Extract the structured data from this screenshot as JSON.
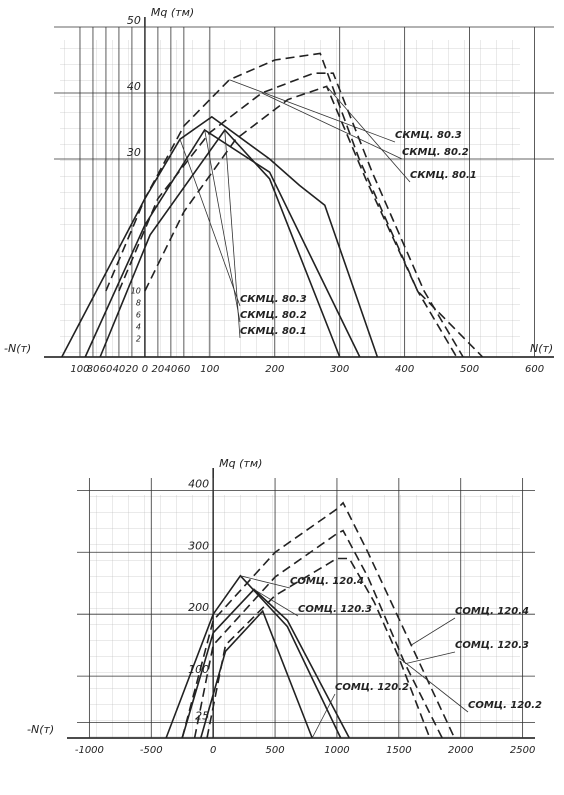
{
  "chart_data": [
    {
      "type": "line",
      "y_label": "Mq (тм)",
      "x_label_left": "-N(т)",
      "x_label": "N(т)",
      "xlim": [
        -140,
        630
      ],
      "ylim": [
        0,
        50
      ],
      "xticks": [
        {
          "value": -100,
          "label": "100"
        },
        {
          "value": -80,
          "label": "80"
        },
        {
          "value": -60,
          "label": "60"
        },
        {
          "value": -40,
          "label": "40"
        },
        {
          "value": -20,
          "label": "20"
        },
        0,
        20,
        40,
        60,
        100,
        200,
        300,
        400,
        500,
        600
      ],
      "yticks": [
        30,
        40,
        50
      ],
      "inner_scale_labels": [
        "10",
        "8",
        "6",
        "4",
        "2"
      ],
      "grid": true,
      "series": [
        {
          "name": "СКМЦ. 80.3",
          "color": "#222",
          "dashed": true,
          "x": [
            -60,
            0,
            60,
            130,
            200,
            270,
            330,
            420,
            520
          ],
          "values": [
            10,
            24,
            35,
            42,
            45,
            46,
            30,
            10,
            0
          ]
        },
        {
          "name": "СКМЦ. 80.2",
          "color": "#222",
          "dashed": true,
          "x": [
            -40,
            20,
            100,
            180,
            260,
            290,
            350,
            430,
            490
          ],
          "values": [
            10,
            24,
            34,
            40,
            43,
            43,
            28,
            10,
            0
          ]
        },
        {
          "name": "СКМЦ. 80.1",
          "color": "#222",
          "dashed": true,
          "x": [
            0,
            60,
            140,
            220,
            280,
            340,
            420,
            480
          ],
          "values": [
            10,
            22,
            33,
            39,
            41,
            27,
            10,
            0
          ]
        },
        {
          "name": "СКМЦ. 80.3",
          "color": "#222",
          "dashed": false,
          "x": [
            -128,
            0,
            54,
            103,
            192,
            238,
            277,
            358
          ],
          "values": [
            0,
            24,
            33,
            36.4,
            30,
            26,
            23,
            0
          ]
        },
        {
          "name": "СКМЦ. 80.2",
          "color": "#222",
          "dashed": false,
          "x": [
            -92,
            0,
            92,
            192,
            331
          ],
          "values": [
            0,
            20,
            34.4,
            28,
            0
          ]
        },
        {
          "name": "СКМЦ. 80.1",
          "color": "#222",
          "dashed": false,
          "x": [
            -69,
            8,
            123,
            192,
            300
          ],
          "values": [
            0,
            18.5,
            34.4,
            27,
            0
          ]
        }
      ]
    },
    {
      "type": "line",
      "y_label": "Mq (тм)",
      "x_label_left": "-N(т)",
      "xlim": [
        -1100,
        2600
      ],
      "ylim": [
        0,
        420
      ],
      "xticks": [
        -1000,
        -500,
        0,
        500,
        1000,
        1500,
        2000,
        2500
      ],
      "yticks": [
        25,
        100,
        200,
        300,
        400
      ],
      "grid": true,
      "series": [
        {
          "name": "СОМЦ. 120.4",
          "color": "#222",
          "dashed": true,
          "x": [
            -250,
            0,
            500,
            1000,
            1050,
            1250,
            1600,
            1950
          ],
          "values": [
            0,
            190,
            300,
            370,
            380,
            300,
            150,
            0
          ]
        },
        {
          "name": "СОМЦ. 120.3",
          "color": "#222",
          "dashed": true,
          "x": [
            -150,
            0,
            500,
            1000,
            1050,
            1250,
            1550,
            1850
          ],
          "values": [
            0,
            150,
            260,
            330,
            335,
            260,
            120,
            0
          ]
        },
        {
          "name": "СОМЦ. 120.2",
          "color": "#222",
          "dashed": true,
          "x": [
            -50,
            100,
            500,
            1000,
            1100,
            1300,
            1500,
            1750
          ],
          "values": [
            0,
            150,
            230,
            290,
            290,
            220,
            130,
            0
          ]
        },
        {
          "name": "СОМЦ. 120.4",
          "color": "#222",
          "dashed": false,
          "x": [
            -380,
            0,
            220,
            600,
            1030
          ],
          "values": [
            0,
            200,
            262,
            180,
            0
          ]
        },
        {
          "name": "СОМЦ. 120.3",
          "color": "#222",
          "dashed": false,
          "x": [
            -250,
            0,
            330,
            600,
            1100
          ],
          "values": [
            0,
            170,
            240,
            190,
            0
          ]
        },
        {
          "name": "СОМЦ. 120.2",
          "color": "#222",
          "dashed": false,
          "x": [
            -100,
            100,
            400,
            800
          ],
          "values": [
            0,
            140,
            205,
            0
          ]
        }
      ]
    }
  ]
}
